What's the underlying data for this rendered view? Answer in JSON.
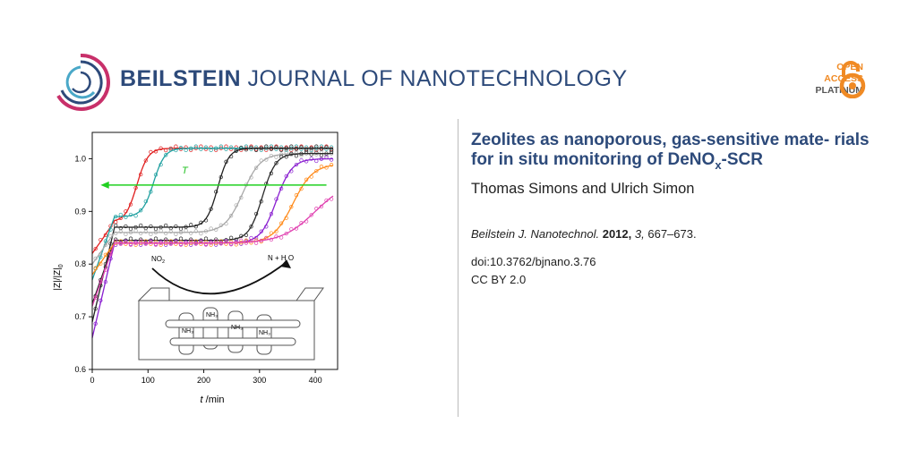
{
  "journal": {
    "name_bold": "BEILSTEIN",
    "name_rest": " JOURNAL OF NANOTECHNOLOGY"
  },
  "open_access": {
    "line1": "OPEN",
    "line2": "ACCESS",
    "line3": "PLATINUM"
  },
  "article": {
    "title_part1": "Zeolites as nanoporous, gas-sensitive mate-",
    "title_part2": "rials for in situ monitoring of DeNO",
    "title_sub": "x",
    "title_part3": "-SCR",
    "authors": "Thomas Simons and Ulrich Simon",
    "journal_abbrev": "Beilstein J. Nanotechnol.",
    "year": "2012,",
    "volume": "3,",
    "pages": "667–673.",
    "doi": "doi:10.3762/bjnano.3.76",
    "license": "CC BY 2.0"
  },
  "colors": {
    "brand": "#2d4a7a",
    "accent": "#f08a24"
  },
  "chart_data": {
    "type": "scatter",
    "xlabel_italic": "t",
    "xlabel_rest": " /min",
    "ylabel": "|Z|/|Z|",
    "ylabel_sub": "0",
    "xlim": [
      0,
      440
    ],
    "ylim": [
      0.6,
      1.05
    ],
    "xticks": [
      "0",
      "100",
      "200",
      "300",
      "400"
    ],
    "yticks": [
      "0.6",
      "0.7",
      "0.8",
      "0.9",
      "1.0"
    ],
    "arrow_label": "T",
    "annotation_left": "NO",
    "annotation_left_sub": "2",
    "annotation_right": "N  + H O",
    "series": [
      {
        "color": "#e02020",
        "start": 0.88,
        "end": 1.02,
        "mid": 80,
        "width": 10
      },
      {
        "color": "#20a0a0",
        "start": 0.89,
        "end": 1.02,
        "mid": 110,
        "width": 10
      },
      {
        "color": "#222222",
        "start": 0.87,
        "end": 1.02,
        "mid": 225,
        "width": 10
      },
      {
        "color": "#a8a8a8",
        "start": 0.86,
        "end": 1.01,
        "mid": 270,
        "width": 16
      },
      {
        "color": "#2a2a2a",
        "start": 0.845,
        "end": 1.01,
        "mid": 305,
        "width": 12
      },
      {
        "color": "#8a20d0",
        "start": 0.84,
        "end": 1.0,
        "mid": 330,
        "width": 14
      },
      {
        "color": "#ff8a1a",
        "start": 0.84,
        "end": 0.99,
        "mid": 360,
        "width": 18
      },
      {
        "color": "#e040b0",
        "start": 0.84,
        "end": 0.96,
        "mid": 400,
        "width": 30
      }
    ]
  }
}
